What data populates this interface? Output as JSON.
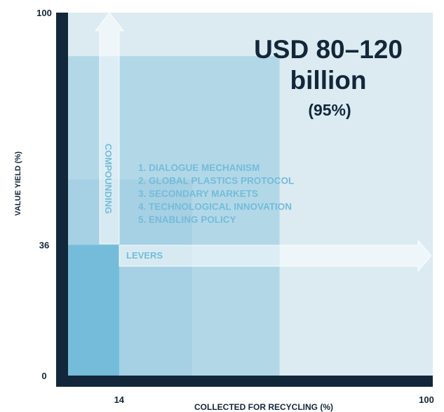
{
  "chart_data": {
    "type": "area",
    "title": "",
    "xlabel": "COLLECTED FOR RECYCLING (%)",
    "ylabel": "VALUE YIELD (%)",
    "xlim": [
      0,
      100
    ],
    "ylim": [
      0,
      100
    ],
    "x_ticks": [
      "14",
      "100"
    ],
    "y_ticks": [
      "0",
      "36",
      "100"
    ],
    "regions": [
      {
        "x_max": 100,
        "y_max": 100,
        "color": "#dcebf1"
      },
      {
        "x_max": 58,
        "y_max": 88,
        "color": "#b2d8e8"
      },
      {
        "x_max": 34,
        "y_max": 54,
        "color": "#a6d0e3"
      },
      {
        "x_max": 14,
        "y_max": 36,
        "color": "#74bcda"
      }
    ],
    "annotations": {
      "headline": [
        "USD 80–120",
        "billion"
      ],
      "share": "(95%)",
      "vertical_arrow_label": "COMPOUNDING",
      "horizontal_arrow_label": "LEVERS",
      "levers": [
        "1. DIALOGUE MECHANISM",
        "2. GLOBAL PLASTICS PROTOCOL",
        "3. SECONDARY MARKETS",
        "4. TECHNOLOGICAL INNOVATION",
        "5. ENABLING POLICY"
      ]
    },
    "colors": {
      "axis": "#13273a",
      "headline": "#13273a",
      "annotation": "#74bcda",
      "arrow_fill": "#ffffff"
    }
  }
}
